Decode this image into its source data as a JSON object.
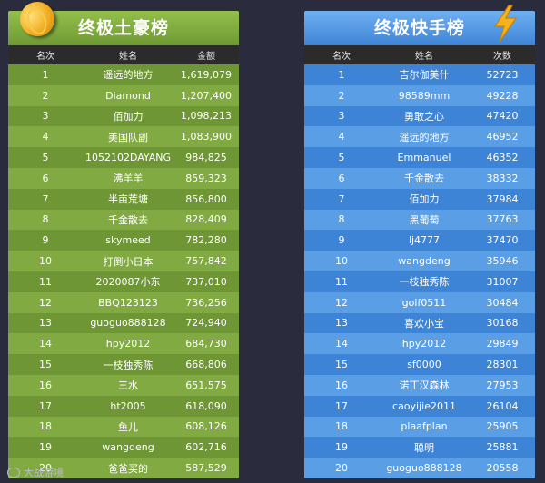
{
  "left": {
    "title": "终极土豪榜",
    "headers": [
      "名次",
      "姓名",
      "金额"
    ],
    "rows": [
      [
        "1",
        "遥远的地方",
        "1,619,079"
      ],
      [
        "2",
        "Diamond",
        "1,207,400"
      ],
      [
        "3",
        "佰加力",
        "1,098,213"
      ],
      [
        "4",
        "美国队副",
        "1,083,900"
      ],
      [
        "5",
        "1052102DAYANG",
        "984,825"
      ],
      [
        "6",
        "沸羊羊",
        "859,323"
      ],
      [
        "7",
        "半亩荒塘",
        "856,800"
      ],
      [
        "8",
        "千金散去",
        "828,409"
      ],
      [
        "9",
        "skymeed",
        "782,280"
      ],
      [
        "10",
        "打倒小日本",
        "757,842"
      ],
      [
        "11",
        "2020087小东",
        "737,010"
      ],
      [
        "12",
        "BBQ123123",
        "736,256"
      ],
      [
        "13",
        "guoguo888128",
        "724,940"
      ],
      [
        "14",
        "hpy2012",
        "684,730"
      ],
      [
        "15",
        "一枝独秀陈",
        "668,806"
      ],
      [
        "16",
        "三水",
        "651,575"
      ],
      [
        "17",
        "ht2005",
        "618,090"
      ],
      [
        "18",
        "鱼儿",
        "608,126"
      ],
      [
        "19",
        "wangdeng",
        "602,716"
      ],
      [
        "20",
        "爸爸买的",
        "587,529"
      ]
    ]
  },
  "right": {
    "title": "终极快手榜",
    "headers": [
      "名次",
      "姓名",
      "次数"
    ],
    "rows": [
      [
        "1",
        "吉尔伽美什",
        "52723"
      ],
      [
        "2",
        "98589mm",
        "49228"
      ],
      [
        "3",
        "勇敢之心",
        "47420"
      ],
      [
        "4",
        "遥远的地方",
        "46952"
      ],
      [
        "5",
        "Emmanuel",
        "46352"
      ],
      [
        "6",
        "千金散去",
        "38332"
      ],
      [
        "7",
        "佰加力",
        "37984"
      ],
      [
        "8",
        "黑葡萄",
        "37763"
      ],
      [
        "9",
        "lj4777",
        "37470"
      ],
      [
        "10",
        "wangdeng",
        "35946"
      ],
      [
        "11",
        "一枝独秀陈",
        "31007"
      ],
      [
        "12",
        "golf0511",
        "30484"
      ],
      [
        "13",
        "喜欢小宝",
        "30168"
      ],
      [
        "14",
        "hpy2012",
        "29849"
      ],
      [
        "15",
        "sf0000",
        "28301"
      ],
      [
        "16",
        "诺丁汉森林",
        "27953"
      ],
      [
        "17",
        "caoyijie2011",
        "26104"
      ],
      [
        "18",
        "plaafplan",
        "25905"
      ],
      [
        "19",
        "聪明",
        "25881"
      ],
      [
        "20",
        "guoguo888128",
        "20558"
      ]
    ]
  },
  "watermark": {
    "text": "大战游境"
  },
  "icons": {
    "left": "gold-coin-icon",
    "right": "lightning-bolt-icon"
  }
}
